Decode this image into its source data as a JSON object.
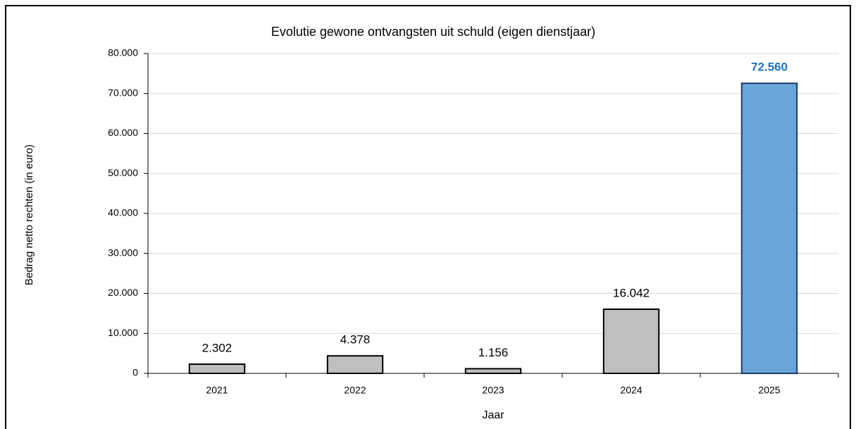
{
  "chart_data": {
    "type": "bar",
    "title": "Evolutie gewone ontvangsten uit schuld (eigen dienstjaar)",
    "xlabel": "Jaar",
    "ylabel": "Bedrag netto rechten  (in euro)",
    "categories": [
      "2021",
      "2022",
      "2023",
      "2024",
      "2025"
    ],
    "values": [
      2302,
      4378,
      1156,
      16042,
      72560
    ],
    "value_labels": [
      "2.302",
      "4.378",
      "1.156",
      "16.042",
      "72.560"
    ],
    "colors": [
      "#bfbfbf",
      "#bfbfbf",
      "#bfbfbf",
      "#bfbfbf",
      "#6aa5da"
    ],
    "label_colors": [
      "#000000",
      "#000000",
      "#000000",
      "#000000",
      "#1f74c4"
    ],
    "ylim": [
      0,
      80000
    ],
    "yticks": [
      0,
      {
        "value": 10000,
        "label": "10.000"
      },
      {
        "value": 20000,
        "label": "20.000"
      },
      {
        "value": 30000,
        "label": "30.000"
      },
      {
        "value": 40000,
        "label": "40.000"
      },
      {
        "value": 50000,
        "label": "50.000"
      },
      {
        "value": 60000,
        "label": "60.000"
      },
      {
        "value": 70000,
        "label": "70.000"
      },
      {
        "value": 80000,
        "label": "80.000"
      }
    ],
    "grid": true
  }
}
